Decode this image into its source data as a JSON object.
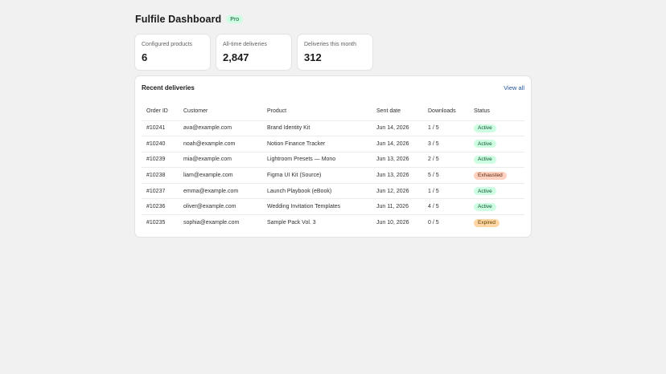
{
  "header": {
    "title": "Fulfile Dashboard",
    "plan_badge": "Pro"
  },
  "stats": [
    {
      "label": "Configured products",
      "value": "6"
    },
    {
      "label": "All-time deliveries",
      "value": "2,847"
    },
    {
      "label": "Deliveries this month",
      "value": "312"
    }
  ],
  "deliveries": {
    "title": "Recent deliveries",
    "view_all": "View all",
    "columns": [
      "Order ID",
      "Customer",
      "Product",
      "Sent date",
      "Downloads",
      "Status"
    ],
    "rows": [
      {
        "order_id": "#10241",
        "customer": "ava@example.com",
        "product": "Brand Identity Kit",
        "sent_date": "Jun 14, 2026",
        "downloads": "1 / 5",
        "status": "Active",
        "status_type": "active"
      },
      {
        "order_id": "#10240",
        "customer": "noah@example.com",
        "product": "Notion Finance Tracker",
        "sent_date": "Jun 14, 2026",
        "downloads": "3 / 5",
        "status": "Active",
        "status_type": "active"
      },
      {
        "order_id": "#10239",
        "customer": "mia@example.com",
        "product": "Lightroom Presets — Mono",
        "sent_date": "Jun 13, 2026",
        "downloads": "2 / 5",
        "status": "Active",
        "status_type": "active"
      },
      {
        "order_id": "#10238",
        "customer": "liam@example.com",
        "product": "Figma UI Kit (Source)",
        "sent_date": "Jun 13, 2026",
        "downloads": "5 / 5",
        "status": "Exhausted",
        "status_type": "exhausted"
      },
      {
        "order_id": "#10237",
        "customer": "emma@example.com",
        "product": "Launch Playbook (eBook)",
        "sent_date": "Jun 12, 2026",
        "downloads": "1 / 5",
        "status": "Active",
        "status_type": "active"
      },
      {
        "order_id": "#10236",
        "customer": "oliver@example.com",
        "product": "Wedding Invitation Templates",
        "sent_date": "Jun 11, 2026",
        "downloads": "4 / 5",
        "status": "Active",
        "status_type": "active"
      },
      {
        "order_id": "#10235",
        "customer": "sophia@example.com",
        "product": "Sample Pack Vol. 3",
        "sent_date": "Jun 10, 2026",
        "downloads": "0 / 5",
        "status": "Expired",
        "status_type": "expired"
      }
    ]
  },
  "colors": {
    "active_bg": "#cdfee1",
    "exhausted_bg": "#fed1c0",
    "expired_bg": "#ffd6a4",
    "link": "#1f5199"
  }
}
